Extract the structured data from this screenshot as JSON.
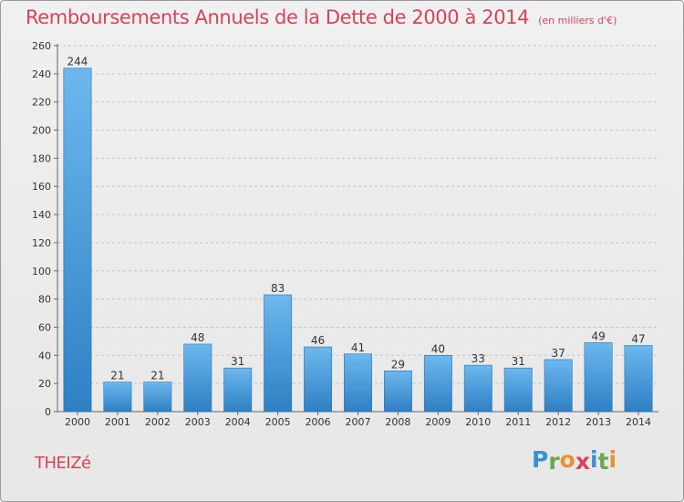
{
  "chart_data": {
    "type": "bar",
    "title": "Remboursements Annuels de la Dette de 2000 à 2014",
    "unit_note": "(en milliers d'€)",
    "categories": [
      "2000",
      "2001",
      "2002",
      "2003",
      "2004",
      "2005",
      "2006",
      "2007",
      "2008",
      "2009",
      "2010",
      "2011",
      "2012",
      "2013",
      "2014"
    ],
    "values": [
      244,
      21,
      21,
      48,
      31,
      83,
      46,
      41,
      29,
      40,
      33,
      31,
      37,
      49,
      47
    ],
    "ylim": [
      0,
      260
    ],
    "yticks": [
      0,
      20,
      40,
      60,
      80,
      100,
      120,
      140,
      160,
      180,
      200,
      220,
      240,
      260
    ],
    "grid": true,
    "xlabel": "",
    "ylabel": ""
  },
  "commune": "THEIZé",
  "logo": {
    "letters": [
      "P",
      "r",
      "o",
      "x",
      "i",
      "t",
      "i"
    ],
    "colors": [
      "#3a8fd6",
      "#6aa84f",
      "#e69138",
      "#d9435a",
      "#3a8fd6",
      "#6aa84f",
      "#e69138"
    ]
  },
  "colors": {
    "title": "#d9435a",
    "bar_top": "#6cb8ee",
    "bar_bottom": "#2e7fc4"
  }
}
